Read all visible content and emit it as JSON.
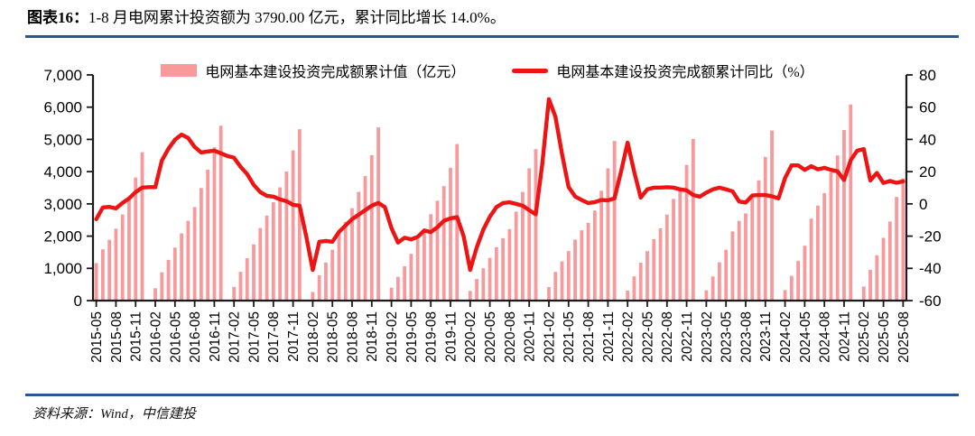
{
  "header": {
    "tag": "图表16：",
    "title": "1-8 月电网累计投资额为 3790.00 亿元，累计同比增长 14.0%。"
  },
  "legend": {
    "bar_label": "电网基本建设投资完成额累计值（亿元）",
    "line_label": "电网基本建设投资完成额累计同比（%）"
  },
  "footer": {
    "text": "资料来源：Wind，中信建投"
  },
  "colors": {
    "bar": "#F8999C",
    "line": "#EE1414",
    "axis": "#1a1a1a",
    "rule": "#2B5593"
  },
  "chart_data": {
    "type": "bar+line",
    "title": "1-8 月电网累计投资额为 3790.00 亿元，累计同比增长 14.0%。",
    "left_axis": {
      "min": 0,
      "max": 7000,
      "step": 1000,
      "ticks": [
        "0",
        "1,000",
        "2,000",
        "3,000",
        "4,000",
        "5,000",
        "6,000",
        "7,000"
      ]
    },
    "right_axis": {
      "min": -60,
      "max": 80,
      "step": 20,
      "ticks": [
        "-60",
        "-40",
        "-20",
        "0",
        "20",
        "40",
        "60",
        "80"
      ]
    },
    "x_label_every": 3,
    "legend_position": "top",
    "grid": false,
    "months": [
      "2015-05",
      "2015-06",
      "2015-07",
      "2015-08",
      "2015-09",
      "2015-10",
      "2015-11",
      "2015-12",
      "2016-01",
      "2016-02",
      "2016-03",
      "2016-04",
      "2016-05",
      "2016-06",
      "2016-07",
      "2016-08",
      "2016-09",
      "2016-10",
      "2016-11",
      "2016-12",
      "2017-01",
      "2017-02",
      "2017-03",
      "2017-04",
      "2017-05",
      "2017-06",
      "2017-07",
      "2017-08",
      "2017-09",
      "2017-10",
      "2017-11",
      "2017-12",
      "2018-01",
      "2018-02",
      "2018-03",
      "2018-04",
      "2018-05",
      "2018-06",
      "2018-07",
      "2018-08",
      "2018-09",
      "2018-10",
      "2018-11",
      "2018-12",
      "2019-01",
      "2019-02",
      "2019-03",
      "2019-04",
      "2019-05",
      "2019-06",
      "2019-07",
      "2019-08",
      "2019-09",
      "2019-10",
      "2019-11",
      "2019-12",
      "2020-01",
      "2020-02",
      "2020-03",
      "2020-04",
      "2020-05",
      "2020-06",
      "2020-07",
      "2020-08",
      "2020-09",
      "2020-10",
      "2020-11",
      "2020-12",
      "2021-01",
      "2021-02",
      "2021-03",
      "2021-04",
      "2021-05",
      "2021-06",
      "2021-07",
      "2021-08",
      "2021-09",
      "2021-10",
      "2021-11",
      "2021-12",
      "2022-01",
      "2022-02",
      "2022-03",
      "2022-04",
      "2022-05",
      "2022-06",
      "2022-07",
      "2022-08",
      "2022-09",
      "2022-10",
      "2022-11",
      "2022-12",
      "2023-01",
      "2023-02",
      "2023-03",
      "2023-04",
      "2023-05",
      "2023-06",
      "2023-07",
      "2023-08",
      "2023-09",
      "2023-10",
      "2023-11",
      "2023-12",
      "2024-01",
      "2024-02",
      "2024-03",
      "2024-04",
      "2024-05",
      "2024-06",
      "2024-07",
      "2024-08",
      "2024-09",
      "2024-10",
      "2024-11",
      "2024-12",
      "2025-01",
      "2025-02",
      "2025-03",
      "2025-04",
      "2025-05",
      "2025-06",
      "2025-07",
      "2025-08"
    ],
    "bars": [
      1164,
      1591,
      1885,
      2229,
      2673,
      3173,
      3817,
      4603,
      null,
      383,
      876,
      1264,
      1643,
      2086,
      2472,
      2900,
      3493,
      4060,
      4756,
      5426,
      null,
      426,
      893,
      1315,
      1747,
      2251,
      2637,
      3054,
      3514,
      4003,
      4662,
      5315,
      null,
      269,
      783,
      1180,
      1579,
      2099,
      2444,
      2865,
      3373,
      3862,
      4511,
      5373,
      null,
      400,
      736,
      1064,
      1450,
      1900,
      2184,
      2680,
      3100,
      3550,
      4120,
      4856,
      null,
      300,
      671,
      1002,
      1325,
      1657,
      1936,
      2218,
      2760,
      3371,
      4102,
      4699,
      null,
      416,
      890,
      1215,
      1536,
      1893,
      2180,
      2409,
      2794,
      3408,
      4102,
      4951,
      null,
      313,
      751,
      1173,
      1534,
      1905,
      2240,
      2667,
      3154,
      3511,
      4209,
      5012,
      null,
      319,
      748,
      1190,
      1578,
      2146,
      2473,
      2705,
      3287,
      3731,
      4458,
      5275,
      null,
      327,
      766,
      1229,
      1703,
      2540,
      2947,
      3330,
      3982,
      4502,
      5290,
      6083,
      null,
      436,
      956,
      1408,
      1947,
      2455,
      3215,
      3790
    ],
    "line": [
      -9.5,
      -2.2,
      -1.9,
      -2.8,
      0.6,
      3.4,
      7.3,
      10.1,
      10.4,
      10.4,
      26.9,
      34.2,
      39.8,
      43.0,
      40.9,
      35.3,
      31.9,
      32.5,
      33.0,
      31.4,
      29.7,
      28.6,
      23.0,
      18.5,
      11.8,
      7.3,
      5.0,
      4.5,
      2.8,
      1.7,
      -0.6,
      -1.1,
      -20.0,
      -41.0,
      -23.5,
      -23.0,
      -23.5,
      -17.4,
      -13.4,
      -9.5,
      -6.7,
      -3.9,
      -1.1,
      0.6,
      -2.0,
      -15.0,
      -24.0,
      -21.0,
      -22.0,
      -20.5,
      -16.5,
      -17.5,
      -14.5,
      -10.5,
      -9.0,
      -8.2,
      -20.0,
      -41.0,
      -27.0,
      -16.0,
      -8.0,
      -2.0,
      0.5,
      1.0,
      0.0,
      -1.1,
      -3.9,
      -6.5,
      25.0,
      65.0,
      54.0,
      31.0,
      10.5,
      4.6,
      2.4,
      0.5,
      1.1,
      2.4,
      2.2,
      3.4,
      20.0,
      38.0,
      20.0,
      3.9,
      9.0,
      10.1,
      10.1,
      10.3,
      10.1,
      9.0,
      8.4,
      5.5,
      4.5,
      7.0,
      9.0,
      10.1,
      9.0,
      7.8,
      1.5,
      0.8,
      5.2,
      5.5,
      5.5,
      4.7,
      3.4,
      16.0,
      23.9,
      23.9,
      21.1,
      23.4,
      21.4,
      22.4,
      21.1,
      20.2,
      14.8,
      27.0,
      33.0,
      34.0,
      14.5,
      19.2,
      13.0,
      14.2,
      13.1,
      14.0
    ]
  }
}
